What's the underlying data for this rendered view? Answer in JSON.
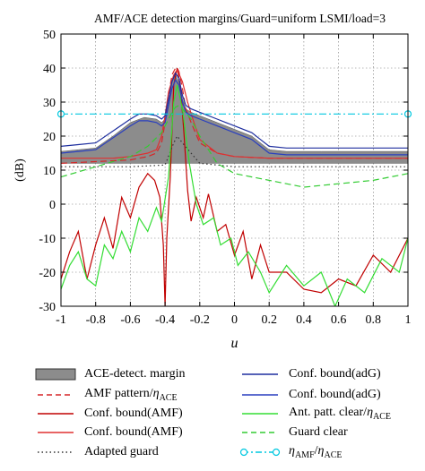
{
  "chart_data": {
    "type": "line",
    "title": "AMF/ACE detection margins/Guard=uniform LSMI/load=3",
    "xlabel": "u",
    "ylabel": "(dB)",
    "xlim": [
      -1,
      1
    ],
    "ylim": [
      -30,
      50
    ],
    "xticks": [
      "-1",
      "-0.8",
      "-0.6",
      "-0.4",
      "-0.2",
      "0",
      "0.2",
      "0.4",
      "0.6",
      "0.8",
      "1"
    ],
    "yticks": [
      "50",
      "40",
      "30",
      "20",
      "10",
      "0",
      "-10",
      "-20",
      "-30"
    ],
    "grid": true,
    "legend_position": "bottom",
    "series": [
      {
        "name": "ACE-detect. margin",
        "style": "fill",
        "color": "#8c8c8c",
        "x": [
          -1,
          -0.9,
          -0.8,
          -0.7,
          -0.6,
          -0.52,
          -0.45,
          -0.42,
          -0.4,
          -0.38,
          -0.36,
          -0.34,
          -0.32,
          -0.3,
          -0.28,
          -0.25,
          -0.2,
          -0.1,
          0,
          0.1,
          0.15,
          0.2,
          0.3,
          0.5,
          0.7,
          0.9,
          1
        ],
        "upper": [
          15.5,
          16,
          16.5,
          20,
          24,
          25.5,
          25,
          24,
          25,
          30,
          36,
          38,
          36,
          31,
          28,
          27,
          26,
          24,
          22,
          20,
          18,
          16,
          15.5,
          15.5,
          15.5,
          15.5,
          15.5
        ],
        "lower": [
          12,
          12,
          12,
          12,
          12,
          12,
          12,
          12,
          12,
          12,
          12,
          12,
          12,
          12,
          12,
          12,
          12,
          12,
          12,
          12,
          12,
          12,
          12,
          12,
          12,
          12,
          12
        ]
      },
      {
        "name": "AMF pattern/ηACE",
        "style": "dashed",
        "color": "#d62728",
        "x": [
          -1,
          -0.8,
          -0.6,
          -0.5,
          -0.45,
          -0.42,
          -0.4,
          -0.38,
          -0.36,
          -0.34,
          -0.33,
          -0.32,
          -0.3,
          -0.28,
          -0.25,
          -0.2,
          -0.1,
          0,
          0.2,
          0.4,
          0.6,
          0.8,
          1
        ],
        "y": [
          12,
          12.5,
          13,
          14,
          15,
          18,
          24,
          32,
          38,
          40,
          40,
          39,
          34,
          28,
          24,
          18,
          15,
          14,
          13.5,
          13.5,
          13.5,
          13.5,
          13.5
        ]
      },
      {
        "name": "Conf. bound(AMF)",
        "style": "solid",
        "color": "#c00000",
        "x": [
          -1,
          -0.95,
          -0.9,
          -0.85,
          -0.8,
          -0.75,
          -0.7,
          -0.65,
          -0.6,
          -0.55,
          -0.5,
          -0.46,
          -0.43,
          -0.41,
          -0.4,
          -0.39,
          -0.37,
          -0.35,
          -0.33,
          -0.31,
          -0.29,
          -0.27,
          -0.25,
          -0.22,
          -0.18,
          -0.15,
          -0.1,
          -0.05,
          0,
          0.05,
          0.1,
          0.15,
          0.2,
          0.3,
          0.4,
          0.5,
          0.6,
          0.7,
          0.8,
          0.9,
          1
        ],
        "y": [
          -22,
          -14,
          -8,
          -22,
          -12,
          -4,
          -13,
          2,
          -4,
          5,
          9,
          7,
          2,
          -12,
          -30,
          -10,
          8,
          35,
          40,
          34,
          20,
          4,
          -5,
          2,
          -4,
          3,
          -8,
          -6,
          -15,
          -8,
          -22,
          -12,
          -20,
          -20,
          -25,
          -26,
          -22,
          -24,
          -15,
          -20,
          -10
        ]
      },
      {
        "name": "Conf. bound(AMF)",
        "style": "solid",
        "color": "#e03030",
        "x": [
          -1,
          -0.9,
          -0.8,
          -0.7,
          -0.6,
          -0.5,
          -0.45,
          -0.42,
          -0.4,
          -0.38,
          -0.35,
          -0.33,
          -0.3,
          -0.27,
          -0.24,
          -0.2,
          -0.1,
          0,
          0.2,
          0.4,
          0.6,
          0.8,
          1
        ],
        "y": [
          13.5,
          13.5,
          13.5,
          13.5,
          14,
          15,
          16,
          20,
          26,
          33,
          38,
          39.5,
          36,
          30,
          25,
          19,
          15,
          14,
          13.5,
          13.5,
          13.5,
          13.5,
          13.5
        ]
      },
      {
        "name": "Adapted guard",
        "style": "dotted",
        "color": "#333333",
        "x": [
          -1,
          -0.8,
          -0.6,
          -0.4,
          -0.35,
          -0.33,
          -0.3,
          -0.2,
          0,
          0.2,
          0.4,
          0.6,
          0.8,
          1
        ],
        "y": [
          11,
          11,
          11,
          11.5,
          18,
          20,
          18,
          12,
          11,
          11,
          11,
          11,
          11,
          11
        ]
      },
      {
        "name": "Conf. bound(adG)",
        "style": "solid",
        "color": "#1f2f9f",
        "x": [
          -1,
          -0.9,
          -0.8,
          -0.7,
          -0.6,
          -0.55,
          -0.5,
          -0.45,
          -0.42,
          -0.4,
          -0.38,
          -0.36,
          -0.34,
          -0.32,
          -0.3,
          -0.28,
          -0.25,
          -0.2,
          -0.1,
          0,
          0.1,
          0.15,
          0.2,
          0.3,
          0.5,
          0.7,
          0.9,
          1
        ],
        "y": [
          17,
          17.5,
          18,
          21.5,
          25,
          26.5,
          26.5,
          26,
          25,
          26,
          31,
          36,
          38.5,
          37,
          32,
          29,
          28,
          27,
          25,
          23,
          21,
          19,
          17,
          16.5,
          16.5,
          16.5,
          16.5,
          16.5
        ]
      },
      {
        "name": "Conf. bound(adG)",
        "style": "solid",
        "color": "#2a3fbf",
        "x": [
          -1,
          -0.9,
          -0.8,
          -0.7,
          -0.6,
          -0.55,
          -0.5,
          -0.45,
          -0.42,
          -0.4,
          -0.38,
          -0.36,
          -0.34,
          -0.32,
          -0.3,
          -0.28,
          -0.25,
          -0.2,
          -0.1,
          0,
          0.1,
          0.15,
          0.2,
          0.3,
          0.5,
          0.7,
          0.9,
          1
        ],
        "y": [
          15,
          15.5,
          16,
          19.5,
          23,
          24.5,
          24.5,
          24,
          23,
          24,
          29,
          34,
          36.5,
          35,
          30,
          27,
          26,
          25,
          23,
          21,
          19,
          17,
          15,
          14.5,
          14.5,
          14.5,
          14.5,
          14.5
        ]
      },
      {
        "name": "Ant. patt. clear/ηACE",
        "style": "solid",
        "color": "#33dd33",
        "x": [
          -1,
          -0.95,
          -0.9,
          -0.85,
          -0.8,
          -0.75,
          -0.7,
          -0.65,
          -0.6,
          -0.55,
          -0.5,
          -0.45,
          -0.42,
          -0.38,
          -0.35,
          -0.33,
          -0.3,
          -0.26,
          -0.22,
          -0.18,
          -0.12,
          -0.08,
          -0.02,
          0.02,
          0.08,
          0.15,
          0.2,
          0.3,
          0.4,
          0.5,
          0.58,
          0.65,
          0.75,
          0.85,
          0.95,
          1
        ],
        "y": [
          -25,
          -18,
          -14,
          -22,
          -24,
          -12,
          -16,
          -8,
          -14,
          -4,
          -8,
          -1,
          -5,
          8,
          30,
          35,
          28,
          12,
          0,
          -6,
          -4,
          -12,
          -10,
          -18,
          -14,
          -20,
          -26,
          -18,
          -24,
          -20,
          -30,
          -22,
          -26,
          -16,
          -20,
          -10
        ]
      },
      {
        "name": "Guard clear",
        "style": "dashed",
        "color": "#33cc33",
        "x": [
          -1,
          -0.8,
          -0.6,
          -0.5,
          -0.42,
          -0.38,
          -0.36,
          -0.34,
          -0.32,
          -0.3,
          -0.25,
          -0.2,
          -0.1,
          0,
          0.1,
          0.2,
          0.4,
          0.6,
          0.8,
          1
        ],
        "y": [
          8,
          11,
          14,
          17,
          21,
          25,
          27,
          28.5,
          29,
          28,
          25,
          20,
          12,
          9,
          8,
          7,
          5,
          6,
          7,
          9
        ]
      },
      {
        "name": "ηAMF/ηACE",
        "style": "dashdot-circle",
        "color": "#00c8e0",
        "x": [
          -1,
          1
        ],
        "y": [
          26.5,
          26.5
        ]
      }
    ]
  },
  "legend": [
    {
      "label": "ACE-detect. margin",
      "html": "ACE-detect. margin"
    },
    {
      "label": "AMF pattern/ηACE",
      "html": "AMF pattern/<i>η</i><sub>ACE</sub>"
    },
    {
      "label": "Conf. bound(AMF)",
      "html": "Conf. bound(AMF)"
    },
    {
      "label": "Conf. bound(AMF)",
      "html": "Conf. bound(AMF)"
    },
    {
      "label": "Adapted guard",
      "html": "Adapted guard"
    },
    {
      "label": "Conf. bound(adG)",
      "html": "Conf. bound(adG)"
    },
    {
      "label": "Conf. bound(adG)",
      "html": "Conf. bound(adG)"
    },
    {
      "label": "Ant. patt. clear/ηACE",
      "html": "Ant. patt. clear/<i>η</i><sub>ACE</sub>"
    },
    {
      "label": "Guard clear",
      "html": "Guard clear"
    },
    {
      "label": "ηAMF/ηACE",
      "html": "<i>η</i><sub>AMF</sub>/<i>η</i><sub>ACE</sub>"
    }
  ]
}
